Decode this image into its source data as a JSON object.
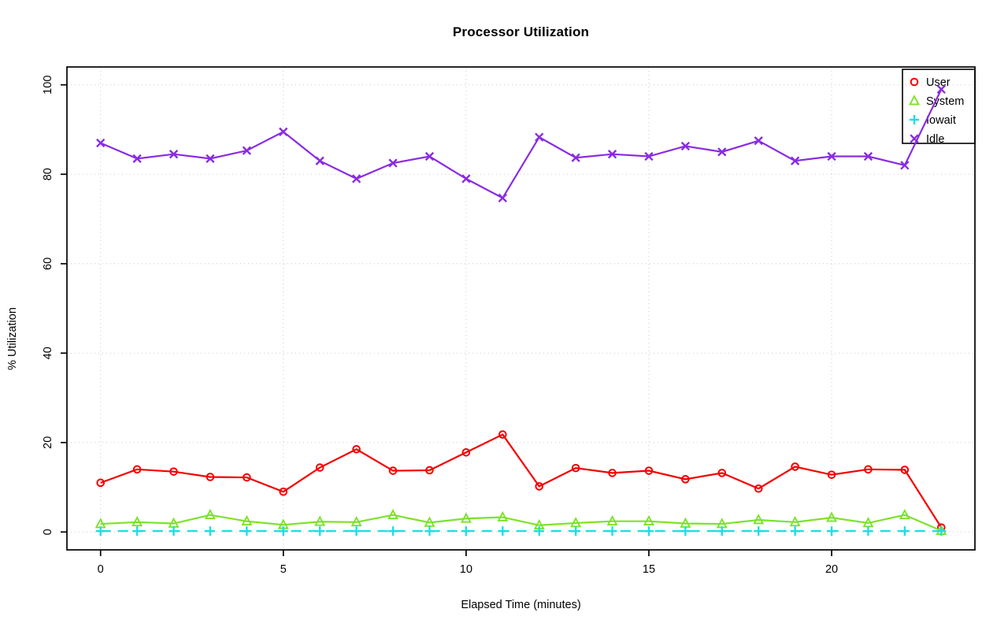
{
  "chart_data": {
    "type": "line",
    "title": "Processor Utilization",
    "xlabel": "Elapsed Time (minutes)",
    "ylabel": "% Utilization",
    "x": [
      0,
      1,
      2,
      3,
      4,
      5,
      6,
      7,
      8,
      9,
      10,
      11,
      12,
      13,
      14,
      15,
      16,
      17,
      18,
      19,
      20,
      21,
      22,
      23
    ],
    "xticks": [
      0,
      5,
      10,
      15,
      20
    ],
    "yticks": [
      0,
      20,
      40,
      60,
      80,
      100
    ],
    "xlim": [
      -0.92,
      23.92
    ],
    "ylim": [
      -4,
      104
    ],
    "grid": true,
    "grid_style": "dotted",
    "legend_position": "top-right",
    "series": [
      {
        "name": "User",
        "color": "#F40000",
        "marker": "circle",
        "line": "solid",
        "values": [
          11,
          14,
          13.5,
          12.3,
          12.2,
          9,
          14.4,
          18.5,
          13.7,
          13.8,
          17.8,
          21.8,
          10.2,
          14.3,
          13.2,
          13.7,
          11.8,
          13.2,
          9.7,
          14.6,
          12.8,
          14,
          13.9,
          1
        ]
      },
      {
        "name": "System",
        "color": "#7CE22B",
        "marker": "triangle",
        "line": "solid",
        "values": [
          1.8,
          2.2,
          1.9,
          3.8,
          2.4,
          1.6,
          2.3,
          2.2,
          3.8,
          2.1,
          3,
          3.3,
          1.5,
          2,
          2.4,
          2.4,
          1.9,
          1.8,
          2.7,
          2.2,
          3.2,
          2,
          3.8,
          0.3
        ]
      },
      {
        "name": "Iowait",
        "color": "#1FDDE6",
        "marker": "plus",
        "line": "dashed",
        "values": [
          0.2,
          0.2,
          0.2,
          0.2,
          0.2,
          0.2,
          0.2,
          0.2,
          0.2,
          0.2,
          0.2,
          0.2,
          0.2,
          0.2,
          0.2,
          0.2,
          0.2,
          0.2,
          0.2,
          0.2,
          0.2,
          0.2,
          0.2,
          0.2
        ]
      },
      {
        "name": "Idle",
        "color": "#8A2BE2",
        "marker": "x",
        "line": "solid",
        "values": [
          87,
          83.5,
          84.5,
          83.5,
          85.3,
          89.5,
          83,
          79,
          82.5,
          84,
          79,
          74.7,
          88.3,
          83.7,
          84.5,
          84,
          86.3,
          85,
          87.5,
          83,
          84,
          84,
          82,
          99
        ]
      }
    ]
  },
  "colors": {
    "background": "#FFFFFF",
    "axis": "#000000",
    "grid": "#C9C9C9",
    "text": "#000000"
  }
}
